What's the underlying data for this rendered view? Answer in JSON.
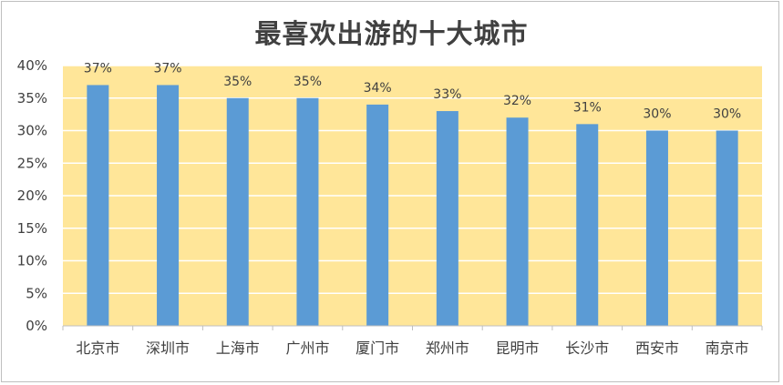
{
  "chart_data": {
    "type": "bar",
    "title": "最喜欢出游的十大城市",
    "xlabel": "",
    "ylabel": "",
    "categories": [
      "北京市",
      "深圳市",
      "上海市",
      "广州市",
      "厦门市",
      "郑州市",
      "昆明市",
      "长沙市",
      "西安市",
      "南京市"
    ],
    "values": [
      37,
      37,
      35,
      35,
      34,
      33,
      32,
      31,
      30,
      30
    ],
    "data_labels": [
      "37%",
      "37%",
      "35%",
      "35%",
      "34%",
      "33%",
      "32%",
      "31%",
      "30%",
      "30%"
    ],
    "y_ticks": [
      0,
      5,
      10,
      15,
      20,
      25,
      30,
      35,
      40
    ],
    "y_tick_labels": [
      "0%",
      "5%",
      "10%",
      "15%",
      "20%",
      "25%",
      "30%",
      "35%",
      "40%"
    ],
    "ylim": [
      0,
      40
    ],
    "grid": true,
    "legend": "none",
    "colors": {
      "bar": "#5b9bd5",
      "plot_background": "#ffe699",
      "gridline": "#ffffff",
      "axis": "#bfbfbf",
      "text": "#404040"
    }
  }
}
